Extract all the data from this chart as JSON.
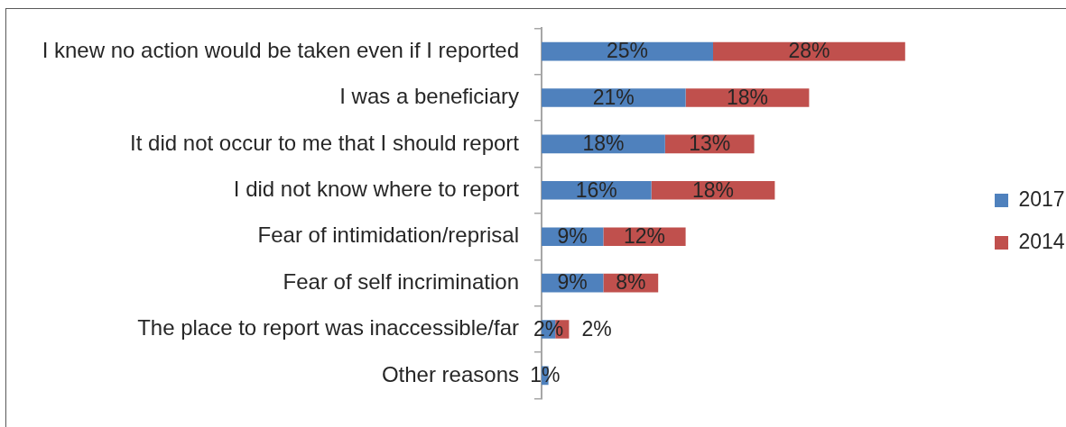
{
  "chart_data": {
    "type": "bar",
    "orientation": "horizontal",
    "stacked": true,
    "categories": [
      "I knew no action would be taken even if I reported",
      "I was a beneficiary",
      "It did not occur to me that I should report",
      "I did not know where to report",
      "Fear of intimidation/reprisal",
      "Fear of self incrimination",
      "The place to report was inaccessible/far",
      "Other reasons"
    ],
    "series": [
      {
        "name": "2017",
        "color": "#4f81bd",
        "values": [
          25,
          21,
          18,
          16,
          9,
          9,
          2,
          1
        ],
        "value_labels": [
          "25%",
          "21%",
          "18%",
          "16%",
          "9%",
          "9%",
          "2%",
          "1%"
        ]
      },
      {
        "name": "2014",
        "color": "#c0504d",
        "values": [
          28,
          18,
          13,
          18,
          12,
          8,
          2,
          null
        ],
        "value_labels": [
          "28%",
          "18%",
          "13%",
          "18%",
          "12%",
          "8%",
          "2%",
          null
        ]
      }
    ],
    "legend": "right",
    "grid": false,
    "tick_labels": "y"
  }
}
